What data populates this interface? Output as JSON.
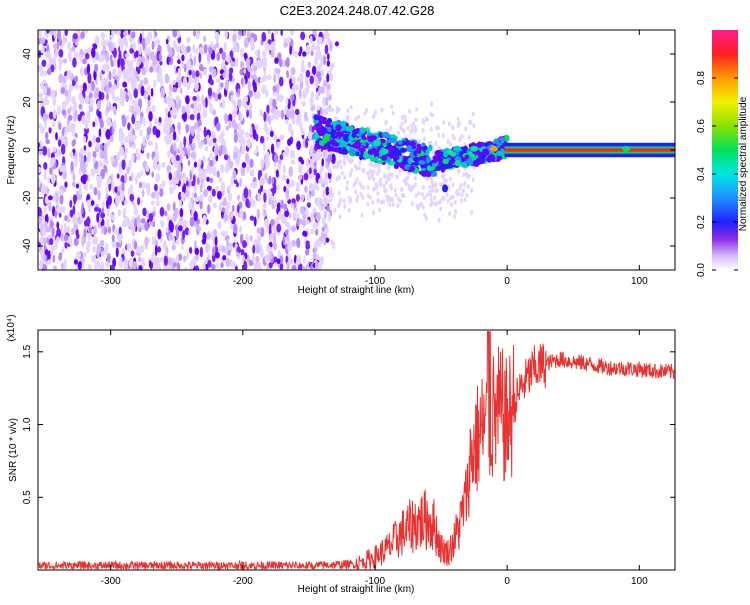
{
  "title": "C2E3.2024.248.07.42.G28",
  "chart_data": [
    {
      "type": "heatmap",
      "xlabel": "Height of straight line (km)",
      "ylabel": "Frequency (Hz)",
      "xlim": [
        -355,
        127
      ],
      "ylim": [
        -50,
        50
      ],
      "xticks": [
        -300,
        -200,
        -100,
        0,
        100
      ],
      "yticks": [
        -40,
        -20,
        0,
        20,
        40
      ],
      "colorbar": {
        "label": "Normalized spectral amplitude",
        "range": [
          0,
          1
        ],
        "ticks": [
          "0.0",
          "0.2",
          "0.4",
          "0.6",
          "0.8"
        ]
      },
      "regions": [
        {
          "x": [
            -355,
            -133
          ],
          "freq": [
            -50,
            50
          ],
          "amplitude": "low, scattered"
        },
        {
          "x": [
            -145,
            -55
          ],
          "freq_center_from": 8,
          "freq_center_to": -5,
          "amplitude": "medium"
        },
        {
          "x": [
            -55,
            0
          ],
          "freq_center_from": -5,
          "freq_center_to": 1,
          "amplitude": "medium-high"
        },
        {
          "x": [
            0,
            127
          ],
          "freq": [
            0,
            0
          ],
          "amplitude": "high, narrow line"
        }
      ]
    },
    {
      "type": "line",
      "xlabel": "Height of straight line (km)",
      "ylabel": "SNR (10 * v/v)",
      "yunit": "(x10⁴)",
      "xlim": [
        -355,
        127
      ],
      "ylim": [
        0,
        1.65
      ],
      "xticks": [
        -300,
        -200,
        -100,
        0,
        100
      ],
      "yticks": [
        0.5,
        1.0,
        1.5
      ],
      "ytick_labels": [
        "0.5",
        "1.0",
        "1.5"
      ],
      "series": [
        {
          "color": "#e8322f",
          "x": [
            -355,
            -300,
            -250,
            -200,
            -150,
            -115,
            -100,
            -90,
            -80,
            -70,
            -60,
            -55,
            -50,
            -45,
            -40,
            -35,
            -30,
            -28,
            -25,
            -20,
            -15,
            -10,
            -5,
            0,
            10,
            20,
            30,
            40,
            50,
            60,
            70,
            80,
            100,
            110,
            127
          ],
          "y": [
            0.03,
            0.03,
            0.03,
            0.03,
            0.03,
            0.04,
            0.09,
            0.15,
            0.25,
            0.32,
            0.35,
            0.3,
            0.15,
            0.12,
            0.2,
            0.35,
            0.55,
            0.75,
            0.85,
            0.95,
            1.0,
            1.05,
            1.08,
            1.0,
            1.25,
            1.38,
            1.42,
            1.45,
            1.43,
            1.42,
            1.4,
            1.39,
            1.38,
            1.37,
            1.36
          ]
        }
      ]
    }
  ]
}
